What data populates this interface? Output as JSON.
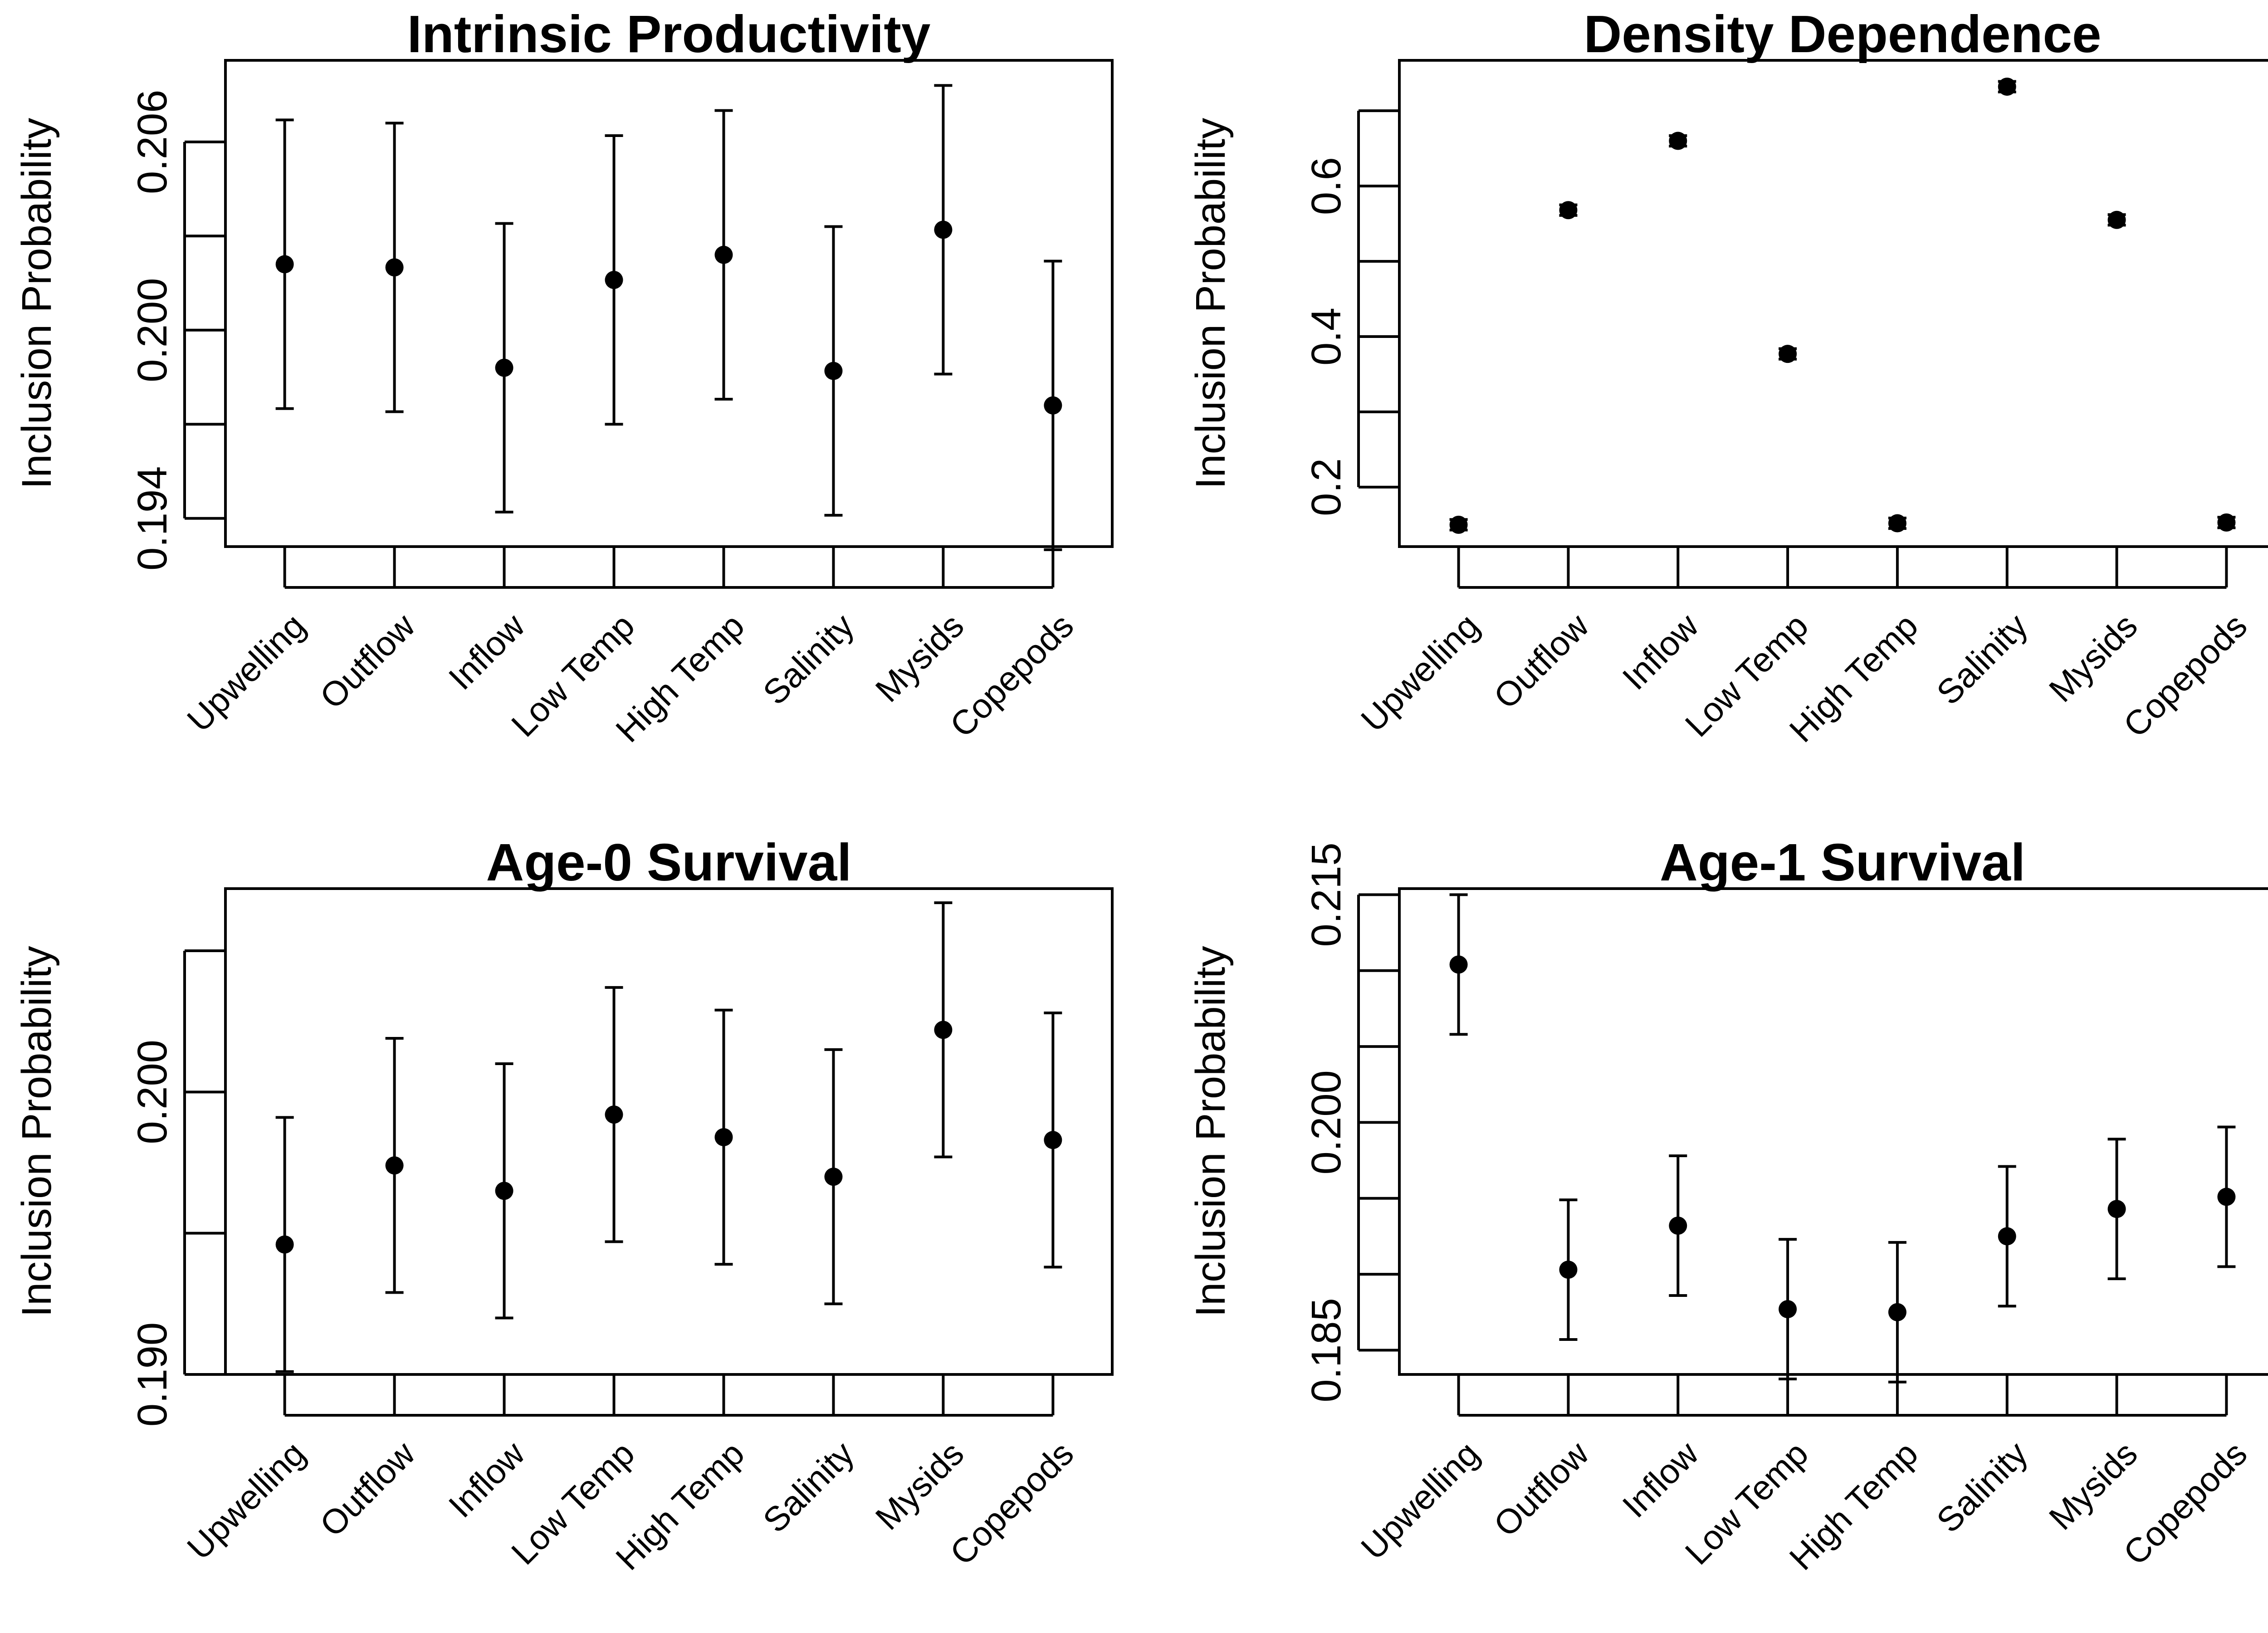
{
  "colors": {
    "ink": "#000000",
    "background": "#ffffff"
  },
  "chart_data": [
    {
      "type": "scatter",
      "title": "Intrinsic Productivity",
      "xlabel": "",
      "ylabel": "Inclusion Probability",
      "categories": [
        "Upwelling",
        "Outflow",
        "Inflow",
        "Low Temp",
        "High Temp",
        "Salinity",
        "Mysids",
        "Copepods"
      ],
      "values": [
        0.2021,
        0.202,
        0.1988,
        0.2016,
        0.2024,
        0.1987,
        0.2032,
        0.1976
      ],
      "lower": [
        0.1975,
        0.1974,
        0.1942,
        0.197,
        0.1978,
        0.1941,
        0.1986,
        0.193
      ],
      "upper": [
        0.2067,
        0.2066,
        0.2034,
        0.2062,
        0.207,
        0.2033,
        0.2078,
        0.2022
      ],
      "ylim": [
        0.1931,
        0.2086
      ],
      "yticks": [
        0.194,
        0.197,
        0.2,
        0.203,
        0.206
      ],
      "ytick_labels": [
        "0.194",
        "",
        "0.200",
        "",
        "0.206"
      ],
      "grid": false,
      "legend": "none"
    },
    {
      "type": "scatter",
      "title": "Density Dependence",
      "xlabel": "",
      "ylabel": "Inclusion Probability",
      "categories": [
        "Upwelling",
        "Outflow",
        "Inflow",
        "Low Temp",
        "High Temp",
        "Salinity",
        "Mysids",
        "Copepods"
      ],
      "values": [
        0.15,
        0.568,
        0.66,
        0.377,
        0.152,
        0.732,
        0.555,
        0.153
      ],
      "lower": [
        0.143,
        0.561,
        0.653,
        0.37,
        0.145,
        0.725,
        0.548,
        0.146
      ],
      "upper": [
        0.157,
        0.575,
        0.667,
        0.384,
        0.159,
        0.739,
        0.562,
        0.16
      ],
      "ylim": [
        0.121,
        0.767
      ],
      "yticks": [
        0.2,
        0.3,
        0.4,
        0.5,
        0.6,
        0.7
      ],
      "ytick_labels": [
        "0.2",
        "",
        "0.4",
        "",
        "0.6",
        ""
      ],
      "grid": false,
      "legend": "none"
    },
    {
      "type": "scatter",
      "title": "Age-0 Survival",
      "xlabel": "",
      "ylabel": "Inclusion Probability",
      "categories": [
        "Upwelling",
        "Outflow",
        "Inflow",
        "Low Temp",
        "High Temp",
        "Salinity",
        "Mysids",
        "Copepods"
      ],
      "values": [
        0.1946,
        0.1974,
        0.1965,
        0.1992,
        0.1984,
        0.197,
        0.2022,
        0.1983
      ],
      "lower": [
        0.1901,
        0.1929,
        0.192,
        0.1947,
        0.1939,
        0.1925,
        0.1977,
        0.1938
      ],
      "upper": [
        0.1991,
        0.2019,
        0.201,
        0.2037,
        0.2029,
        0.2015,
        0.2067,
        0.2028
      ],
      "ylim": [
        0.19,
        0.2072
      ],
      "yticks": [
        0.19,
        0.195,
        0.2,
        0.205
      ],
      "ytick_labels": [
        "0.190",
        "",
        "0.200",
        ""
      ],
      "grid": false,
      "legend": "none"
    },
    {
      "type": "scatter",
      "title": "Age-1 Survival",
      "xlabel": "",
      "ylabel": "Inclusion Probability",
      "categories": [
        "Upwelling",
        "Outflow",
        "Inflow",
        "Low Temp",
        "High Temp",
        "Salinity",
        "Mysids",
        "Copepods"
      ],
      "values": [
        0.2104,
        0.1903,
        0.1932,
        0.1877,
        0.1875,
        0.1925,
        0.1943,
        0.1951
      ],
      "lower": [
        0.2058,
        0.1857,
        0.1886,
        0.1831,
        0.1829,
        0.1879,
        0.1897,
        0.1905
      ],
      "upper": [
        0.215,
        0.1949,
        0.1978,
        0.1923,
        0.1921,
        0.1971,
        0.1989,
        0.1997
      ],
      "ylim": [
        0.1834,
        0.2154
      ],
      "yticks": [
        0.185,
        0.19,
        0.195,
        0.2,
        0.205,
        0.21,
        0.215
      ],
      "ytick_labels": [
        "0.185",
        "",
        "",
        "0.200",
        "",
        "",
        "0.215"
      ],
      "grid": false,
      "legend": "none"
    }
  ]
}
